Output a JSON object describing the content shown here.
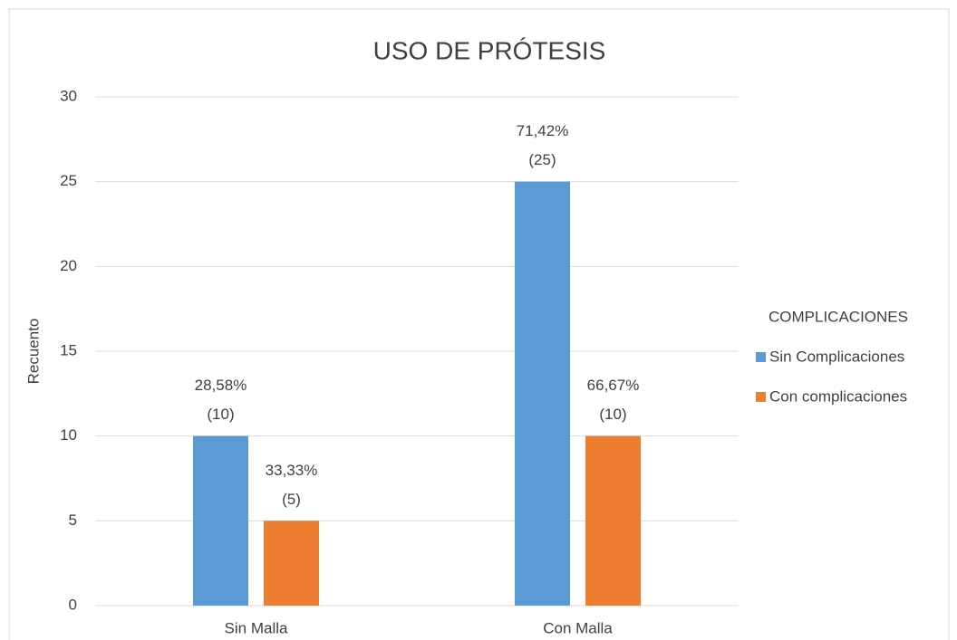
{
  "chart_data": {
    "type": "bar",
    "title": "USO DE PRÓTESIS",
    "y_label": "Recuento",
    "categories": [
      "Sin Malla",
      "Con Malla"
    ],
    "legend_title": "COMPLICACIONES",
    "legend_position": "right",
    "series": [
      {
        "name": "Sin Complicaciones",
        "color": "#5b9bd5",
        "values": [
          10,
          25
        ],
        "value_labels": [
          [
            "28,58%",
            "(10)"
          ],
          [
            "71,42%",
            "(25)"
          ]
        ]
      },
      {
        "name": "Con complicaciones",
        "color": "#ed7d31",
        "values": [
          5,
          10
        ],
        "value_labels": [
          [
            "33,33%",
            "(5)"
          ],
          [
            "66,67%",
            "(10)"
          ]
        ]
      }
    ],
    "ylim": [
      0,
      30
    ],
    "yticks": [
      0,
      5,
      10,
      15,
      20,
      25,
      30
    ],
    "grid": true
  }
}
